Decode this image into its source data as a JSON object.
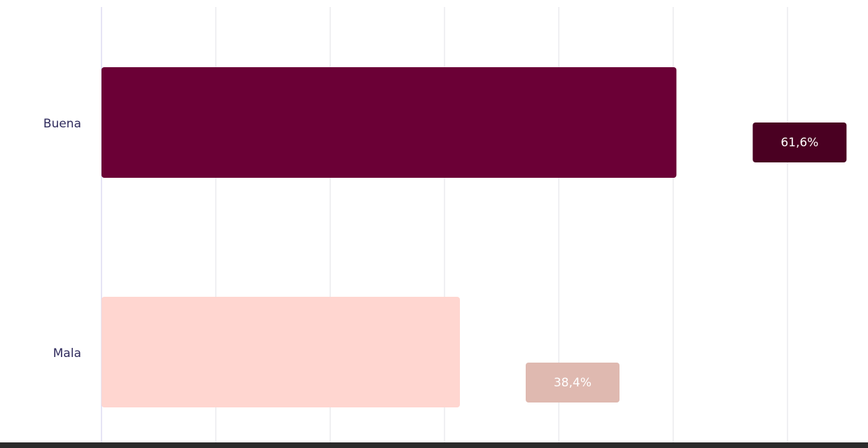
{
  "chart_data": {
    "type": "hbar",
    "categories": [
      "Buena",
      "Mala"
    ],
    "values": [
      61.6,
      38.4
    ],
    "value_labels": [
      "61,6%",
      "38,4%"
    ],
    "colors": [
      "#6b0036",
      "#ffd6d0"
    ],
    "label_colors": [
      "#4a0022",
      "#dfb9b0"
    ],
    "xlim": [
      0,
      73.5
    ],
    "xticks": [
      0,
      12.25,
      24.5,
      36.75,
      49,
      61.25,
      73.5
    ],
    "grid": true
  }
}
